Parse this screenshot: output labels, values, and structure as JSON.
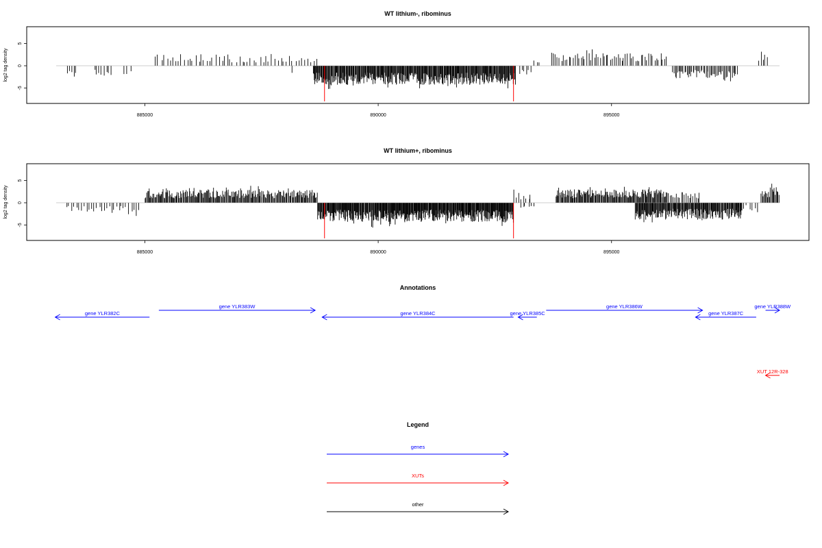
{
  "chart_data": [
    {
      "type": "bar",
      "title": "WT lithium-, ribominus",
      "ylabel": "log2 tag density",
      "xlabel": "",
      "xlim": [
        883100,
        898600
      ],
      "ylim": [
        -8,
        8
      ],
      "xticks": [
        885000,
        890000,
        895000
      ],
      "yticks": [
        -5,
        0,
        5
      ],
      "xtick_labels": [
        "885000",
        "890000",
        "895000"
      ],
      "ytick_labels": [
        "-5",
        "0",
        "5"
      ],
      "markers": [
        {
          "x": 888850,
          "color": "#ff0000"
        },
        {
          "x": 892900,
          "color": "#ff0000"
        }
      ],
      "segments": [
        {
          "start": 883300,
          "end": 883550,
          "sign": -1,
          "amp": 2.5,
          "count": 5,
          "seed": 11
        },
        {
          "start": 883900,
          "end": 884300,
          "sign": -1,
          "amp": 2.2,
          "count": 8,
          "seed": 12
        },
        {
          "start": 884500,
          "end": 884800,
          "sign": -1,
          "amp": 2.0,
          "count": 3,
          "seed": 13
        },
        {
          "start": 885200,
          "end": 886800,
          "sign": 1,
          "amp": 2.6,
          "count": 26,
          "seed": 14
        },
        {
          "start": 886800,
          "end": 888700,
          "sign": 1,
          "amp": 2.2,
          "count": 30,
          "seed": 15
        },
        {
          "start": 888150,
          "end": 888200,
          "sign": -1,
          "amp": 3.0,
          "count": 1,
          "seed": 16
        },
        {
          "start": 888600,
          "end": 892950,
          "sign": -1,
          "amp": 4.3,
          "count": 340,
          "seed": 17
        },
        {
          "start": 893000,
          "end": 893300,
          "sign": -1,
          "amp": 2.0,
          "count": 6,
          "seed": 18
        },
        {
          "start": 893300,
          "end": 893500,
          "sign": 1,
          "amp": 1.5,
          "count": 3,
          "seed": 19
        },
        {
          "start": 893700,
          "end": 896200,
          "sign": 1,
          "amp": 2.8,
          "count": 60,
          "seed": 20
        },
        {
          "start": 896300,
          "end": 897700,
          "sign": -1,
          "amp": 2.8,
          "count": 55,
          "seed": 21
        },
        {
          "start": 898150,
          "end": 898350,
          "sign": 1,
          "amp": 3.0,
          "count": 5,
          "seed": 22
        }
      ]
    },
    {
      "type": "bar",
      "title": "WT lithium+, ribominus",
      "ylabel": "log2 tag density",
      "xlabel": "",
      "xlim": [
        883100,
        898600
      ],
      "ylim": [
        -8,
        8
      ],
      "xticks": [
        885000,
        890000,
        895000
      ],
      "yticks": [
        -5,
        0,
        5
      ],
      "xtick_labels": [
        "885000",
        "890000",
        "895000"
      ],
      "ytick_labels": [
        "-5",
        "0",
        "5"
      ],
      "markers": [
        {
          "x": 888850,
          "color": "#ff0000"
        },
        {
          "x": 892900,
          "color": "#ff0000"
        }
      ],
      "segments": [
        {
          "start": 883300,
          "end": 884900,
          "sign": -1,
          "amp": 2.0,
          "count": 30,
          "seed": 31
        },
        {
          "start": 885000,
          "end": 888700,
          "sign": 1,
          "amp": 2.9,
          "count": 220,
          "seed": 32
        },
        {
          "start": 888700,
          "end": 892900,
          "sign": -1,
          "amp": 4.3,
          "count": 380,
          "seed": 33
        },
        {
          "start": 892900,
          "end": 893300,
          "sign": 1,
          "amp": 2.0,
          "count": 8,
          "seed": 34
        },
        {
          "start": 893000,
          "end": 893400,
          "sign": -1,
          "amp": 1.8,
          "count": 6,
          "seed": 35
        },
        {
          "start": 893800,
          "end": 896200,
          "sign": 1,
          "amp": 3.0,
          "count": 150,
          "seed": 36
        },
        {
          "start": 895500,
          "end": 897800,
          "sign": -1,
          "amp": 3.8,
          "count": 170,
          "seed": 37
        },
        {
          "start": 896200,
          "end": 896900,
          "sign": 1,
          "amp": 2.5,
          "count": 20,
          "seed": 38
        },
        {
          "start": 897700,
          "end": 898150,
          "sign": -1,
          "amp": 1.5,
          "count": 8,
          "seed": 39
        },
        {
          "start": 898200,
          "end": 898600,
          "sign": 1,
          "amp": 3.5,
          "count": 20,
          "seed": 40
        }
      ]
    }
  ],
  "annotations": {
    "title": "Annotations",
    "features": [
      {
        "label": "gene YLR382C",
        "start": 883080,
        "end": 885100,
        "strand": "-",
        "row": 1,
        "color": "#0000ff"
      },
      {
        "label": "gene YLR383W",
        "start": 885300,
        "end": 888650,
        "strand": "+",
        "row": 0,
        "color": "#0000ff"
      },
      {
        "label": "gene YLR384C",
        "start": 888800,
        "end": 892900,
        "strand": "-",
        "row": 1,
        "color": "#0000ff"
      },
      {
        "label": "gene YLR385C",
        "start": 893000,
        "end": 893400,
        "strand": "-",
        "row": 1,
        "color": "#0000ff"
      },
      {
        "label": "gene YLR386W",
        "start": 893600,
        "end": 896950,
        "strand": "+",
        "row": 0,
        "color": "#0000ff"
      },
      {
        "label": "gene YLR387C",
        "start": 896800,
        "end": 898100,
        "strand": "-",
        "row": 1,
        "color": "#0000ff"
      },
      {
        "label": "gene YLR388W",
        "start": 898300,
        "end": 898600,
        "strand": "+",
        "row": 0,
        "color": "#0000ff"
      },
      {
        "label": "XUT 12R-328",
        "start": 898300,
        "end": 898600,
        "strand": "-",
        "row": 2,
        "color": "#ff0000"
      }
    ]
  },
  "legend": {
    "title": "Legend",
    "items": [
      {
        "label": "genes",
        "color": "#0000ff"
      },
      {
        "label": "XUTs",
        "color": "#ff0000"
      },
      {
        "label": "other",
        "color": "#000000"
      }
    ]
  }
}
